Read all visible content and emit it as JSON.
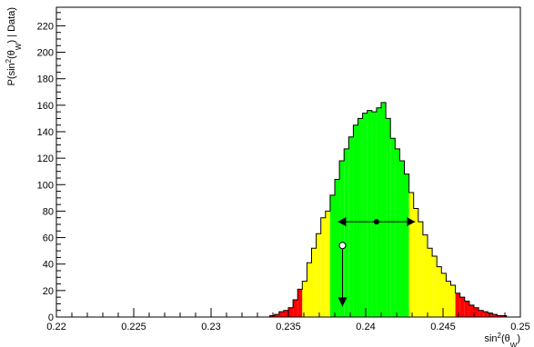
{
  "chart_data": {
    "type": "histogram",
    "xlabel": [
      "sin",
      "2",
      "(θ",
      "W",
      ")"
    ],
    "ylabel": [
      "P(sin",
      "2",
      "(θ",
      "W",
      ") | Data)"
    ],
    "xlim": [
      0.22,
      0.25
    ],
    "ylim": [
      0,
      234
    ],
    "xticks": [
      0.22,
      0.225,
      0.23,
      0.235,
      0.24,
      0.245,
      0.25
    ],
    "yticks": [
      0,
      20,
      40,
      60,
      80,
      100,
      120,
      140,
      160,
      180,
      200,
      220
    ],
    "bins": [
      0.22,
      0.2203,
      0.2206,
      0.2209,
      0.2212,
      0.2215,
      0.2218,
      0.2221,
      0.2224,
      0.2227,
      0.223,
      0.2233,
      0.2236,
      0.2239,
      0.2242,
      0.2245,
      0.2248,
      0.2251,
      0.2254,
      0.2257,
      0.226,
      0.2263,
      0.2266,
      0.2269,
      0.2272,
      0.2275,
      0.2278,
      0.2281,
      0.2284,
      0.2287,
      0.229,
      0.2293,
      0.2296,
      0.2299,
      0.2302,
      0.2305,
      0.2308,
      0.2311,
      0.2314,
      0.2317,
      0.232,
      0.2323,
      0.2326,
      0.2329,
      0.2332,
      0.2335,
      0.2338,
      0.2341,
      0.2344,
      0.2347,
      0.235,
      0.2353,
      0.2356,
      0.2359,
      0.2362,
      0.2365,
      0.2368,
      0.2371,
      0.2374,
      0.2377,
      0.238,
      0.2383,
      0.2386,
      0.2389,
      0.2392,
      0.2395,
      0.2398,
      0.2401,
      0.2404,
      0.2407,
      0.241,
      0.2413,
      0.2416,
      0.2419,
      0.2422,
      0.2425,
      0.2428,
      0.2431,
      0.2434,
      0.2437,
      0.244,
      0.2443,
      0.2446,
      0.2449,
      0.2452,
      0.2455,
      0.2458,
      0.2461,
      0.2464,
      0.2467,
      0.247,
      0.2473,
      0.2476,
      0.2479,
      0.2482,
      0.2485,
      0.2488,
      0.2491,
      0.2494,
      0.2497,
      0.25
    ],
    "values": [
      0,
      0,
      0,
      0,
      0,
      0,
      0,
      0,
      0,
      0,
      0,
      0,
      0,
      0,
      0,
      0,
      0,
      0,
      0,
      0,
      0,
      0,
      0,
      0,
      0,
      0,
      0,
      0,
      0,
      0,
      0,
      0,
      0,
      0,
      0,
      0,
      0,
      0,
      0,
      0,
      0,
      0,
      0,
      0,
      0,
      0,
      1,
      2,
      4,
      5,
      7,
      13,
      21,
      27,
      41,
      52,
      63,
      75,
      80,
      92,
      104,
      118,
      127,
      136,
      145,
      150,
      154,
      156,
      155,
      158,
      162,
      150,
      135,
      127,
      118,
      108,
      94,
      82,
      72,
      62,
      52,
      46,
      38,
      33,
      27,
      24,
      18,
      15,
      12,
      9,
      7,
      5,
      4,
      3,
      2,
      1,
      1,
      0,
      0,
      0
    ],
    "bands": [
      {
        "from": 0.22,
        "to": 0.2359,
        "color": "#ff0000"
      },
      {
        "from": 0.2359,
        "to": 0.2377,
        "color": "#ffff00"
      },
      {
        "from": 0.2377,
        "to": 0.2428,
        "color": "#00ff00"
      },
      {
        "from": 0.2428,
        "to": 0.2458,
        "color": "#ffff00"
      },
      {
        "from": 0.2458,
        "to": 0.25,
        "color": "#ff0000"
      }
    ],
    "best": {
      "x": 0.2407,
      "y": 72,
      "xerr_low": 0.2382,
      "xerr_high": 0.2432
    },
    "limit": {
      "x": 0.2385,
      "y": 54,
      "arrow_to": 8
    }
  }
}
